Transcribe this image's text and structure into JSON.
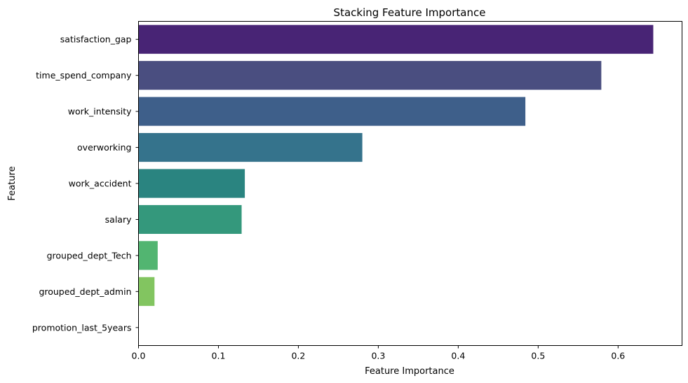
{
  "chart_data": {
    "type": "bar",
    "orientation": "horizontal",
    "title": "Stacking Feature Importance",
    "xlabel": "Feature Importance",
    "ylabel": "Feature",
    "xlim": [
      0,
      0.68
    ],
    "xticks": [
      "0.0",
      "0.1",
      "0.2",
      "0.3",
      "0.4",
      "0.5",
      "0.6"
    ],
    "grid": false,
    "legend": "none",
    "categories": [
      "satisfaction_gap",
      "time_spend_company",
      "work_intensity",
      "overworking",
      "work_accident",
      "salary",
      "grouped_dept_Tech",
      "grouped_dept_admin",
      "promotion_last_5years"
    ],
    "values": [
      0.644,
      0.579,
      0.484,
      0.28,
      0.133,
      0.129,
      0.024,
      0.02,
      0.0
    ],
    "colors": [
      "#482475",
      "#4a4e80",
      "#3e5f8a",
      "#35738c",
      "#2a8480",
      "#34987c",
      "#52b571",
      "#82c560",
      "#c2d840"
    ]
  }
}
